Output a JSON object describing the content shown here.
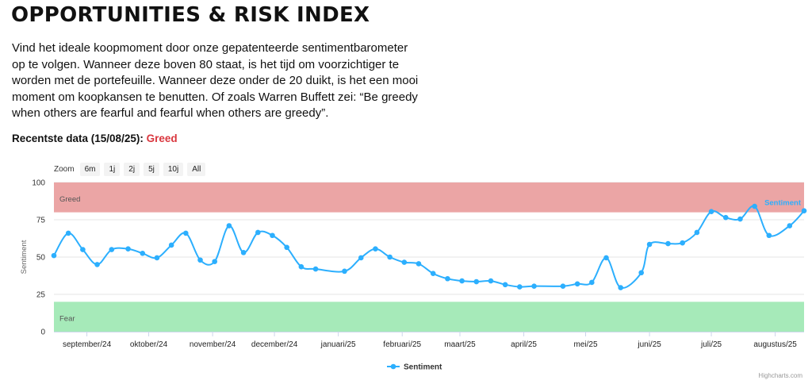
{
  "page": {
    "title": "OPPORTUNITIES & RISK INDEX",
    "intro": "Vind het ideale koopmoment door onze gepatenteerde sentimentbarometer op te volgen. Wanneer deze boven 80 staat, is het tijd om voorzichtiger te worden met de portefeuille. Wanneer deze onder de 20 duikt, is het een mooi moment om koopkansen te benutten. Of zoals Warren Buffett zei: “Be greedy when others are fearful and fearful when others are greedy”.",
    "recent_label": "Recentste data (15/08/25):",
    "recent_status": "Greed",
    "status_color": "#d9363e"
  },
  "zoom": {
    "label": "Zoom",
    "options": [
      "6m",
      "1j",
      "2j",
      "5j",
      "10j",
      "All"
    ]
  },
  "credits": "Highcharts.com",
  "chart_data": {
    "type": "line",
    "ylabel": "Sentiment",
    "ylim": [
      0,
      100
    ],
    "yticks": [
      0,
      25,
      50,
      75,
      100
    ],
    "xlim": [
      "2024-08-16",
      "2025-08-15"
    ],
    "bands": [
      {
        "label": "Greed",
        "from": 80,
        "to": 100,
        "color": "#eba5a5"
      },
      {
        "label": "Fear",
        "from": 0,
        "to": 20,
        "color": "#a6eab9"
      }
    ],
    "xticks": [
      {
        "label": "september/24",
        "date": "2024-09-01"
      },
      {
        "label": "oktober/24",
        "date": "2024-10-01"
      },
      {
        "label": "november/24",
        "date": "2024-11-01"
      },
      {
        "label": "december/24",
        "date": "2024-12-01"
      },
      {
        "label": "januari/25",
        "date": "2025-01-01"
      },
      {
        "label": "februari/25",
        "date": "2025-02-01"
      },
      {
        "label": "maart/25",
        "date": "2025-03-01"
      },
      {
        "label": "april/25",
        "date": "2025-04-01"
      },
      {
        "label": "mei/25",
        "date": "2025-05-01"
      },
      {
        "label": "juni/25",
        "date": "2025-06-01"
      },
      {
        "label": "juli/25",
        "date": "2025-07-01"
      },
      {
        "label": "augustus/25",
        "date": "2025-08-01"
      }
    ],
    "series": [
      {
        "name": "Sentiment",
        "color": "#2caffe",
        "data": [
          [
            "2024-08-16",
            51
          ],
          [
            "2024-08-23",
            66
          ],
          [
            "2024-08-30",
            55
          ],
          [
            "2024-09-06",
            45
          ],
          [
            "2024-09-13",
            55
          ],
          [
            "2024-09-21",
            55.5
          ],
          [
            "2024-09-28",
            52.5
          ],
          [
            "2024-10-05",
            49.5
          ],
          [
            "2024-10-12",
            58
          ],
          [
            "2024-10-19",
            66
          ],
          [
            "2024-10-26",
            48
          ],
          [
            "2024-11-02",
            47
          ],
          [
            "2024-11-09",
            71
          ],
          [
            "2024-11-16",
            53
          ],
          [
            "2024-11-23",
            66.5
          ],
          [
            "2024-11-30",
            64.5
          ],
          [
            "2024-12-07",
            56.5
          ],
          [
            "2024-12-14",
            43.5
          ],
          [
            "2024-12-21",
            42
          ],
          [
            "2025-01-04",
            40.5
          ],
          [
            "2025-01-12",
            49.5
          ],
          [
            "2025-01-19",
            55.5
          ],
          [
            "2025-01-26",
            50
          ],
          [
            "2025-02-02",
            46.5
          ],
          [
            "2025-02-09",
            45.5
          ],
          [
            "2025-02-16",
            39
          ],
          [
            "2025-02-23",
            35.5
          ],
          [
            "2025-03-02",
            34
          ],
          [
            "2025-03-09",
            33.5
          ],
          [
            "2025-03-16",
            34
          ],
          [
            "2025-03-23",
            31.5
          ],
          [
            "2025-03-30",
            30
          ],
          [
            "2025-04-06",
            30.5
          ],
          [
            "2025-04-20",
            30.5
          ],
          [
            "2025-04-27",
            32
          ],
          [
            "2025-05-04",
            33
          ],
          [
            "2025-05-11",
            49.5
          ],
          [
            "2025-05-18",
            29.5
          ],
          [
            "2025-05-28",
            39.5
          ],
          [
            "2025-06-01",
            58.5
          ],
          [
            "2025-06-10",
            59
          ],
          [
            "2025-06-17",
            59.5
          ],
          [
            "2025-06-24",
            66.5
          ],
          [
            "2025-07-01",
            80.5
          ],
          [
            "2025-07-08",
            76.5
          ],
          [
            "2025-07-15",
            75.5
          ],
          [
            "2025-07-22",
            84
          ],
          [
            "2025-07-29",
            64.5
          ],
          [
            "2025-08-08",
            71
          ],
          [
            "2025-08-15",
            81
          ]
        ]
      }
    ]
  }
}
